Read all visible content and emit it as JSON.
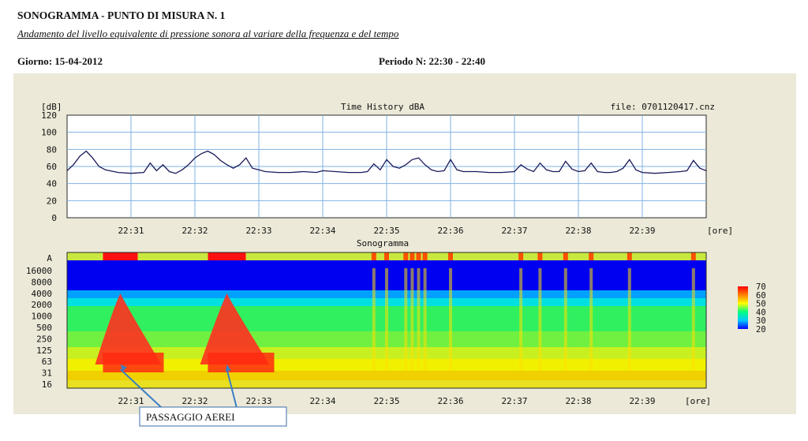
{
  "header": {
    "title": "SONOGRAMMA - PUNTO DI MISURA N. 1",
    "subtitle": "Andamento del livello equivalente di pressione sonora al variare della frequenza e del tempo",
    "day_label": "Giorno: 15-04-2012",
    "period_label": "Periodo N:  22:30 - 22:40"
  },
  "chart_data": [
    {
      "type": "line",
      "title": "Time History dBA",
      "ylabel": "[dB]",
      "xlabel": "[ore]",
      "file_label": "file: 0701120417.cnz",
      "ylim": [
        0,
        120
      ],
      "yticks": [
        "0",
        "20",
        "40",
        "60",
        "80",
        "100",
        "120"
      ],
      "xlim": [
        "22:30",
        "22:40"
      ],
      "xticks": [
        "22:31",
        "22:32",
        "22:33",
        "22:34",
        "22:35",
        "22:36",
        "22:37",
        "22:38",
        "22:39"
      ],
      "grid": true,
      "series": [
        {
          "color": "#1a1a5a",
          "x": [
            30.0,
            30.1,
            30.2,
            30.3,
            30.4,
            30.5,
            30.6,
            30.8,
            31.0,
            31.2,
            31.3,
            31.4,
            31.5,
            31.6,
            31.7,
            31.8,
            31.9,
            32.0,
            32.1,
            32.2,
            32.3,
            32.4,
            32.5,
            32.6,
            32.7,
            32.8,
            32.9,
            33.0,
            33.1,
            33.3,
            33.5,
            33.7,
            33.9,
            34.0,
            34.2,
            34.4,
            34.6,
            34.7,
            34.8,
            34.9,
            35.0,
            35.1,
            35.2,
            35.3,
            35.4,
            35.5,
            35.6,
            35.7,
            35.8,
            35.9,
            36.0,
            36.1,
            36.2,
            36.4,
            36.6,
            36.8,
            37.0,
            37.1,
            37.2,
            37.3,
            37.4,
            37.5,
            37.6,
            37.7,
            37.8,
            37.9,
            38.0,
            38.1,
            38.2,
            38.3,
            38.4,
            38.5,
            38.6,
            38.7,
            38.8,
            38.9,
            39.0,
            39.2,
            39.4,
            39.6,
            39.7,
            39.8,
            39.9,
            40.0
          ],
          "y": [
            55,
            62,
            72,
            78,
            70,
            60,
            56,
            53,
            52,
            53,
            64,
            55,
            62,
            54,
            52,
            56,
            62,
            70,
            75,
            78,
            74,
            67,
            62,
            58,
            62,
            70,
            58,
            56,
            54,
            53,
            53,
            54,
            53,
            55,
            54,
            53,
            53,
            54,
            63,
            56,
            68,
            60,
            58,
            62,
            68,
            70,
            62,
            56,
            54,
            55,
            68,
            56,
            54,
            54,
            53,
            53,
            54,
            62,
            57,
            54,
            64,
            56,
            54,
            54,
            66,
            57,
            54,
            55,
            64,
            54,
            53,
            53,
            54,
            58,
            68,
            56,
            53,
            52,
            53,
            54,
            55,
            67,
            58,
            55
          ]
        }
      ]
    },
    {
      "type": "heatmap",
      "title": "Sonogramma",
      "xlabel": "[ore]",
      "xlim": [
        "22:30",
        "22:40"
      ],
      "xticks": [
        "22:31",
        "22:32",
        "22:33",
        "22:34",
        "22:35",
        "22:36",
        "22:37",
        "22:38",
        "22:39"
      ],
      "yticks": [
        "A",
        "16000",
        "8000",
        "4000",
        "2000",
        "1000",
        "500",
        "250",
        "125",
        "63",
        "31",
        "16"
      ],
      "colorbar": {
        "ticks": [
          "20",
          "30",
          "40",
          "50",
          "60",
          "70"
        ],
        "colors": [
          "#0000ff",
          "#00c8ff",
          "#00ff80",
          "#ffff00",
          "#ff8000",
          "#ff0000"
        ]
      }
    }
  ],
  "annotation": {
    "label": "PASSAGGIO AEREI",
    "targets": [
      "22:30:50",
      "22:32:30"
    ]
  }
}
